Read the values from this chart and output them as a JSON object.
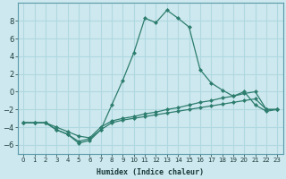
{
  "xlabel": "Humidex (Indice chaleur)",
  "bg_color": "#cde8ee",
  "grid_color": "#b0d8e0",
  "line_color": "#2d7d6e",
  "marker_color": "#2d7d6e",
  "xlim": [
    -0.5,
    23.5
  ],
  "ylim": [
    -7.0,
    10.0
  ],
  "xticks": [
    0,
    1,
    2,
    3,
    4,
    5,
    6,
    7,
    8,
    9,
    10,
    11,
    12,
    13,
    14,
    15,
    16,
    17,
    18,
    19,
    20,
    21,
    22,
    23
  ],
  "yticks": [
    -6,
    -4,
    -2,
    0,
    2,
    4,
    6,
    8
  ],
  "series": [
    {
      "x": [
        0,
        1,
        2,
        3,
        4,
        5,
        6,
        7,
        8,
        9,
        10,
        11,
        12,
        13,
        14,
        15,
        16,
        17,
        18,
        19,
        20,
        21,
        22,
        23
      ],
      "y": [
        -3.5,
        -3.5,
        -3.5,
        -4.3,
        -4.8,
        -5.8,
        -5.5,
        -4.3,
        -1.5,
        1.3,
        4.4,
        8.3,
        7.8,
        9.2,
        8.3,
        7.3,
        2.5,
        1.0,
        0.2,
        -0.5,
        0.0,
        -1.5,
        -2.2,
        -2.0
      ]
    },
    {
      "x": [
        0,
        1,
        2,
        3,
        4,
        5,
        6,
        7,
        8,
        9,
        10,
        11,
        12,
        13,
        14,
        15,
        16,
        17,
        18,
        19,
        20,
        21,
        22,
        23
      ],
      "y": [
        -3.5,
        -3.5,
        -3.5,
        -4.0,
        -4.5,
        -5.0,
        -5.2,
        -4.0,
        -3.3,
        -3.0,
        -2.8,
        -2.5,
        -2.3,
        -2.0,
        -1.8,
        -1.5,
        -1.2,
        -1.0,
        -0.7,
        -0.5,
        -0.2,
        0.0,
        -2.0,
        -2.0
      ]
    },
    {
      "x": [
        0,
        1,
        2,
        3,
        4,
        5,
        6,
        7,
        8,
        9,
        10,
        11,
        12,
        13,
        14,
        15,
        16,
        17,
        18,
        19,
        20,
        21,
        22,
        23
      ],
      "y": [
        -3.5,
        -3.5,
        -3.5,
        -4.3,
        -4.8,
        -5.6,
        -5.3,
        -4.3,
        -3.5,
        -3.2,
        -3.0,
        -2.8,
        -2.6,
        -2.4,
        -2.2,
        -2.0,
        -1.8,
        -1.6,
        -1.4,
        -1.2,
        -1.0,
        -0.8,
        -2.0,
        -2.0
      ]
    }
  ]
}
